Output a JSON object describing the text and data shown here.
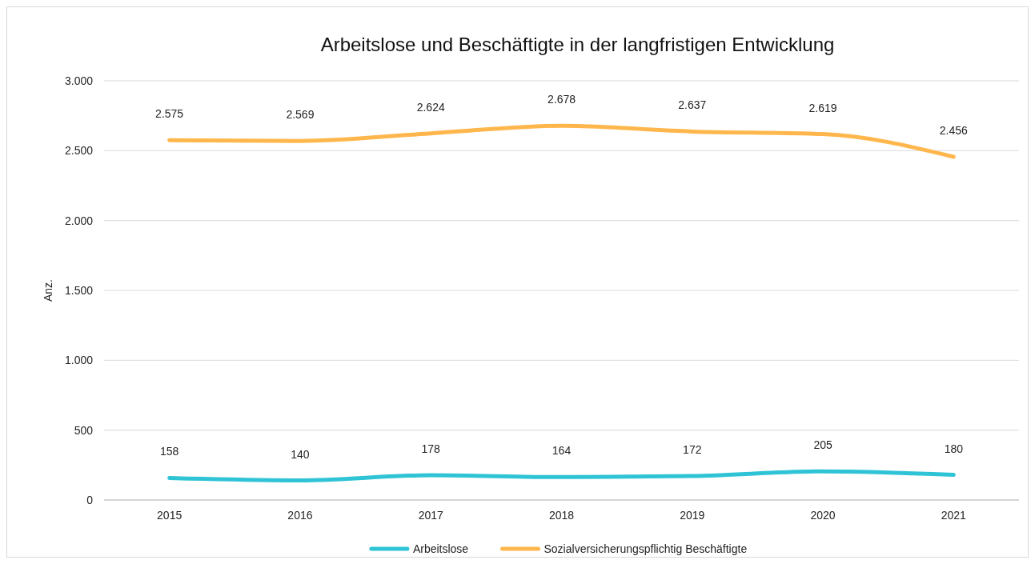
{
  "chart_data": {
    "type": "line",
    "title": "Arbeitslose und Beschäftigte in der langfristigen Entwicklung",
    "ylabel": "Anz.",
    "categories": [
      "2015",
      "2016",
      "2017",
      "2018",
      "2019",
      "2020",
      "2021"
    ],
    "series": [
      {
        "name": "Arbeitslose",
        "color": "#2ec4d6",
        "values": [
          158,
          140,
          178,
          164,
          172,
          205,
          180
        ],
        "value_labels": [
          "158",
          "140",
          "178",
          "164",
          "172",
          "205",
          "180"
        ]
      },
      {
        "name": "Sozialversicherungspflichtig Beschäftigte",
        "color": "#ffb74d",
        "values": [
          2575,
          2569,
          2624,
          2678,
          2637,
          2619,
          2456
        ],
        "value_labels": [
          "2.575",
          "2.569",
          "2.624",
          "2.678",
          "2.637",
          "2.619",
          "2.456"
        ]
      }
    ],
    "ylim": [
      0,
      3000
    ],
    "yticks": [
      {
        "value": 0,
        "label": "0"
      },
      {
        "value": 500,
        "label": "500"
      },
      {
        "value": 1000,
        "label": "1.000"
      },
      {
        "value": 1500,
        "label": "1.500"
      },
      {
        "value": 2000,
        "label": "2.000"
      },
      {
        "value": 2500,
        "label": "2.500"
      },
      {
        "value": 3000,
        "label": "3.000"
      }
    ],
    "grid": "y",
    "legend": "bottom",
    "marker": "none",
    "line_style": "solid"
  }
}
